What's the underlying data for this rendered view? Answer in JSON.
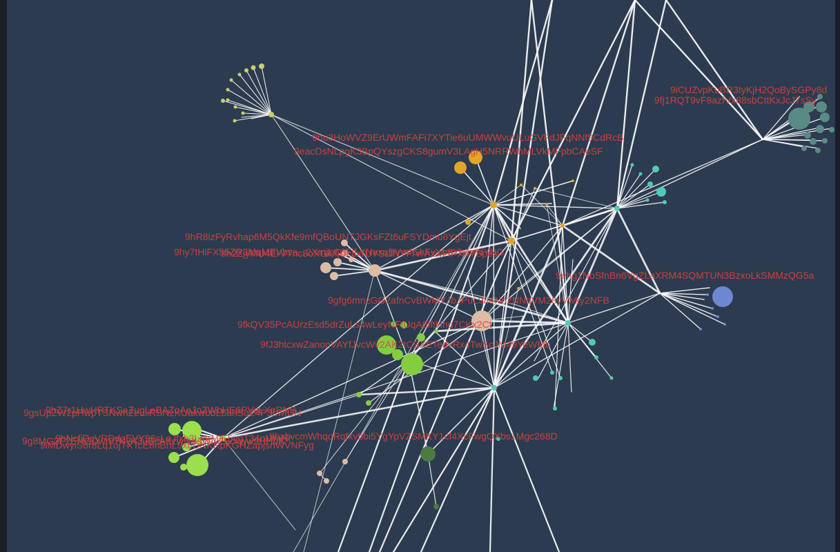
{
  "colors": {
    "background": "#2c3b4f",
    "edge": "#ffffff",
    "label": "#d8423e"
  },
  "graph": {
    "labels": [
      "9iCUZvpKuBR3tyKjH2QoBySGPy8d",
      "9fj1RQT9vF8azfVx88sbCttKxJcJ7sSy",
      "9hu3HoWVZ9ErUWmFAFi7XYTie6uUMWWvuULuGVFdJFqNNf9CdRcB",
      "9eacDsNLpgK3BpQYszgCKS8gumV3LAgH5NRRWhMLVkMFpbCAeSF",
      "9hR8izFyRvhap6M5QkKfe9mfQBoUNTJGKsFZt6uFSYDmu6YgEjt",
      "9hy7tHiFX55ZR3MqMEVbva...2XmjLC3Fjf.YNaxqBVmfGhFvYb8Yh4rrNYNG",
      "9h2ZjyMU4ErVTnc8oXGi8fjUc3xrUYSrJNYFfVrAzwFfPXhYSpes",
      "9ehg1NoSfnBn6VgZLaXRM4SQMTUN3BzxoLkSMMzQG5a",
      "9gfg6mnzGG2afnCvBWMYJbJPuL984Nn2NNqVM28yVwky2NFB",
      "9fkQV35PcAUrzEsd5drZuLs4wLeyNFtUqA6fftHhq7CKx2Ct",
      "9fJ3htcxwZanonVAYfJvcWv2AK2tCSXETedvRx4TwScJM49YeWMb",
      "9gsUpZW2pHwpTSNwnZeuiiRSNzKUakwbbLbahSqZ4P3LwfUN",
      "9hZ7r1HwHRTKSeZugLeBAZoAeJoZWbHE6PVeLXpRNB",
      "9hxbvcmWhqoRqfxvbbi5YgYpVZSMKY1cf4XcFwgQXbs1Mgc268D",
      "9g8MG2F2ENGDwr97KyK3uBcAKzwNXsWiv2Scxww9HHbK",
      "9hNcfiDcVRDdqEVY96sLaJfxh3LmrMiE5vgT34nMmNr",
      "9iMDwyiS6r8Lq1ojTXTcE8nBnL9xbDNKRpKGHZapjsnWVNFyg"
    ]
  }
}
